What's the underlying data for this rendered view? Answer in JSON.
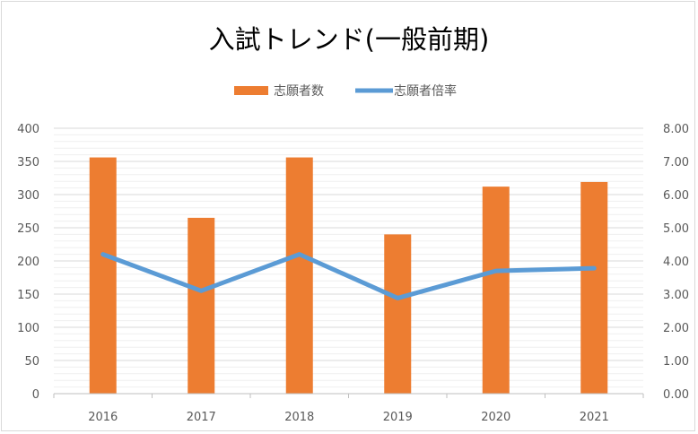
{
  "chart_data": {
    "type": "bar",
    "title": "入試トレンド(一般前期)",
    "categories": [
      "2016",
      "2017",
      "2018",
      "2019",
      "2020",
      "2021"
    ],
    "series": [
      {
        "name": "志願者数",
        "type": "bar",
        "axis": "left",
        "color": "#ed7d31",
        "values": [
          356,
          265,
          356,
          240,
          312,
          319
        ]
      },
      {
        "name": "志願者倍率",
        "type": "line",
        "axis": "right",
        "color": "#5b9bd5",
        "values": [
          4.2,
          3.1,
          4.2,
          2.88,
          3.7,
          3.78
        ]
      }
    ],
    "y_left": {
      "min": 0,
      "max": 400,
      "step": 50,
      "ticks": [
        "0",
        "50",
        "100",
        "150",
        "200",
        "250",
        "300",
        "350",
        "400"
      ]
    },
    "y_right": {
      "min": 0,
      "max": 8,
      "step": 1,
      "ticks": [
        "0.00",
        "1.00",
        "2.00",
        "3.00",
        "4.00",
        "5.00",
        "6.00",
        "7.00",
        "8.00"
      ]
    },
    "grid": true,
    "legend_position": "top-center"
  }
}
